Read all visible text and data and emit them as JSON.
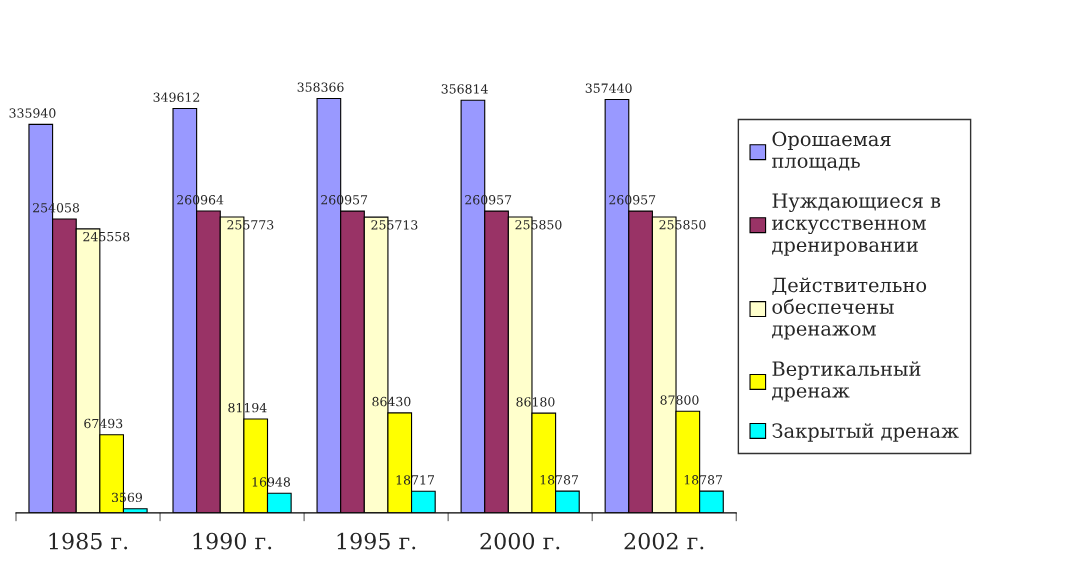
{
  "chart_data": {
    "type": "bar",
    "categories": [
      "1985 г.",
      "1990 г.",
      "1995 г.",
      "2000 г.",
      "2002 г."
    ],
    "series": [
      {
        "name": "Орошаемая площадь",
        "color": "#9999ff",
        "values": [
          335940,
          349612,
          358366,
          356814,
          357440
        ]
      },
      {
        "name": "Нуждающиеся в искусственном дренировании",
        "color": "#993366",
        "values": [
          254058,
          260964,
          260957,
          260957,
          260957
        ]
      },
      {
        "name": "Действительно обеспечены дренажом",
        "color": "#ffffcc",
        "values": [
          245558,
          255773,
          255713,
          255850,
          255850
        ]
      },
      {
        "name": "Вертикальный дренаж",
        "color": "#ffff00",
        "values": [
          67493,
          81194,
          86430,
          86180,
          87800
        ]
      },
      {
        "name": "Закрытый дренаж",
        "color": "#00ffff",
        "values": [
          3569,
          16948,
          18717,
          18787,
          18787
        ]
      }
    ],
    "data_labels": true,
    "legend": "right",
    "grid": false
  }
}
